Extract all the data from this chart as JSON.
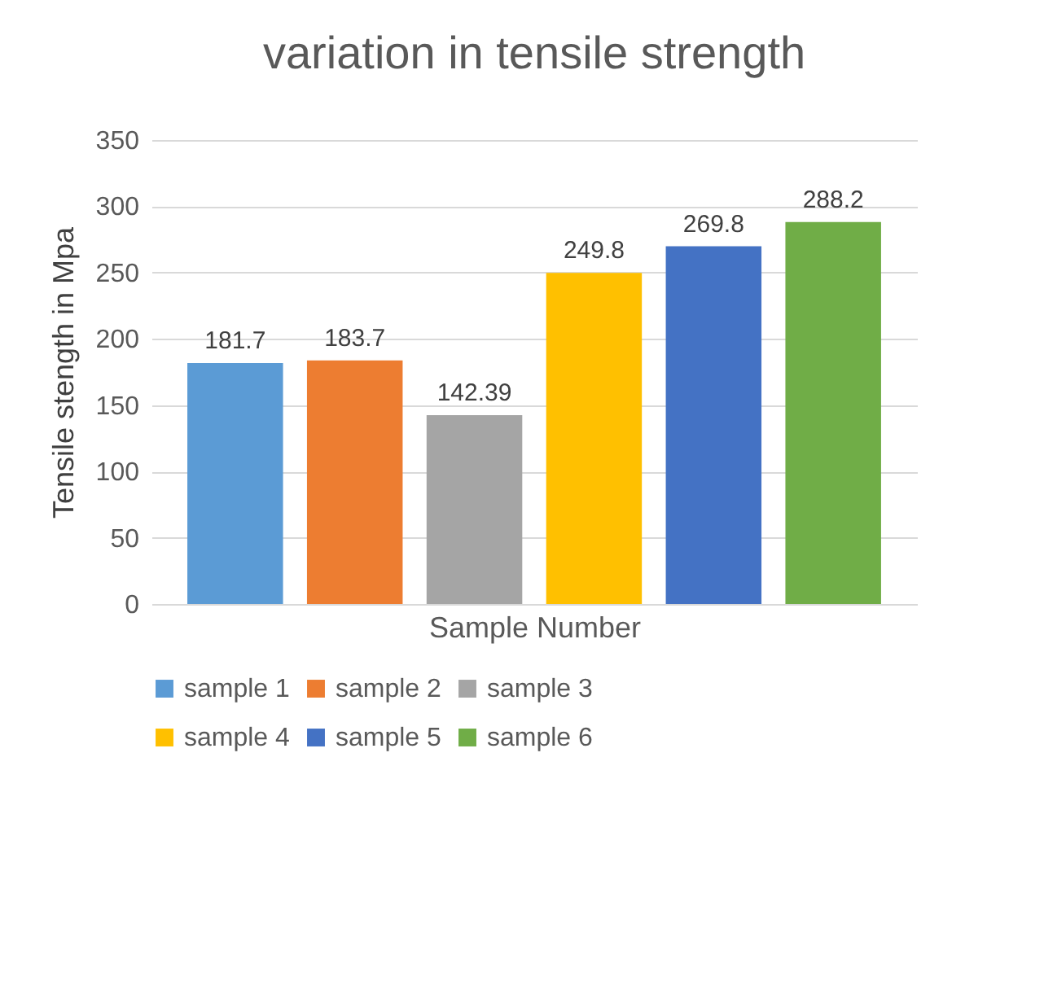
{
  "chart_data": {
    "type": "bar",
    "title": "variation in tensile strength",
    "xlabel": "Sample Number",
    "ylabel": "Tensile stength in  Mpa",
    "categories": [
      null
    ],
    "series": [
      {
        "name": "sample 1",
        "color": "#5b9bd5",
        "values": [
          181.7
        ]
      },
      {
        "name": "sample 2",
        "color": "#ed7d31",
        "values": [
          183.7
        ]
      },
      {
        "name": "sample 3",
        "color": "#a5a5a5",
        "values": [
          142.39
        ]
      },
      {
        "name": "sample 4",
        "color": "#ffc000",
        "values": [
          249.8
        ]
      },
      {
        "name": "sample 5",
        "color": "#4472c4",
        "values": [
          269.8
        ]
      },
      {
        "name": "sample 6",
        "color": "#70ad47",
        "values": [
          288.2
        ]
      }
    ],
    "ylim": [
      0,
      350
    ],
    "yticks": [
      0,
      50,
      100,
      150,
      200,
      250,
      300,
      350
    ],
    "grid": "y",
    "legend": "bottom",
    "data_labels": true
  }
}
